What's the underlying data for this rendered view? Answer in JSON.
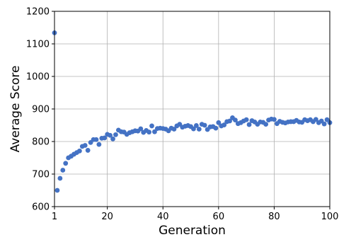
{
  "chart_data": {
    "type": "scatter",
    "title": "",
    "xlabel": "Generation",
    "ylabel": "Average Score",
    "xlim": [
      1,
      100
    ],
    "ylim": [
      600,
      1200
    ],
    "xticks": [
      1,
      20,
      40,
      60,
      80,
      100
    ],
    "yticks": [
      600,
      700,
      800,
      900,
      1000,
      1100,
      1200
    ],
    "grid": true,
    "legend": "none",
    "series": [
      {
        "color": "#4472c4",
        "x": [
          1,
          2,
          3,
          4,
          5,
          6,
          7,
          8,
          9,
          10,
          11,
          12,
          13,
          14,
          15,
          16,
          17,
          18,
          19,
          20,
          21,
          22,
          23,
          24,
          25,
          26,
          27,
          28,
          29,
          30,
          31,
          32,
          33,
          34,
          35,
          36,
          37,
          38,
          39,
          40,
          41,
          42,
          43,
          44,
          45,
          46,
          47,
          48,
          49,
          50,
          51,
          52,
          53,
          54,
          55,
          56,
          57,
          58,
          59,
          60,
          61,
          62,
          63,
          64,
          65,
          66,
          67,
          68,
          69,
          70,
          71,
          72,
          73,
          74,
          75,
          76,
          77,
          78,
          79,
          80,
          81,
          82,
          83,
          84,
          85,
          86,
          87,
          88,
          89,
          90,
          91,
          92,
          93,
          94,
          95,
          96,
          97,
          98,
          99,
          100
        ],
        "y": [
          1134,
          650,
          687,
          712,
          733,
          750,
          755,
          761,
          766,
          771,
          785,
          788,
          773,
          797,
          806,
          806,
          791,
          810,
          811,
          822,
          819,
          808,
          821,
          835,
          830,
          829,
          822,
          827,
          830,
          833,
          832,
          839,
          828,
          834,
          829,
          848,
          830,
          840,
          841,
          840,
          838,
          833,
          841,
          838,
          848,
          853,
          844,
          847,
          849,
          846,
          839,
          849,
          838,
          853,
          850,
          837,
          845,
          846,
          841,
          858,
          848,
          851,
          861,
          863,
          873,
          866,
          855,
          858,
          863,
          867,
          852,
          864,
          860,
          853,
          860,
          859,
          853,
          866,
          869,
          868,
          855,
          862,
          859,
          857,
          860,
          861,
          861,
          865,
          860,
          859,
          867,
          864,
          867,
          861,
          868,
          858,
          863,
          854,
          867,
          858
        ]
      }
    ]
  }
}
